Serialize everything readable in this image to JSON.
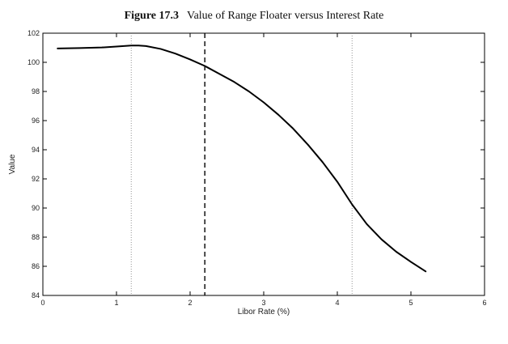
{
  "figure": {
    "number": "Figure 17.3",
    "title": "Value of Range Floater versus Interest Rate"
  },
  "chart_data": {
    "type": "line",
    "title": "Value of Range Floater versus Interest Rate",
    "xlabel": "Libor Rate (%)",
    "ylabel": "Value",
    "xlim": [
      0,
      6
    ],
    "ylim": [
      84,
      102
    ],
    "xticks": [
      0,
      1,
      2,
      3,
      4,
      5,
      6
    ],
    "yticks": [
      84,
      86,
      88,
      90,
      92,
      94,
      96,
      98,
      100,
      102
    ],
    "grid": false,
    "series": [
      {
        "style": "solid",
        "x": [
          0.2,
          0.5,
          0.8,
          1.0,
          1.2,
          1.3,
          1.4,
          1.6,
          1.8,
          2.0,
          2.2,
          2.4,
          2.6,
          2.8,
          3.0,
          3.2,
          3.4,
          3.6,
          3.8,
          4.0,
          4.2,
          4.4,
          4.6,
          4.8,
          5.0,
          5.2
        ],
        "values": [
          100.95,
          100.98,
          101.02,
          101.08,
          101.15,
          101.15,
          101.12,
          100.92,
          100.6,
          100.2,
          99.75,
          99.2,
          98.65,
          98.0,
          97.25,
          96.4,
          95.45,
          94.35,
          93.15,
          91.8,
          90.25,
          88.9,
          87.85,
          87.0,
          86.3,
          85.65
        ]
      }
    ],
    "reference_lines": [
      {
        "x": 1.2,
        "style": "dotted"
      },
      {
        "x": 2.2,
        "style": "dashed"
      },
      {
        "x": 4.2,
        "style": "dotted"
      }
    ]
  }
}
